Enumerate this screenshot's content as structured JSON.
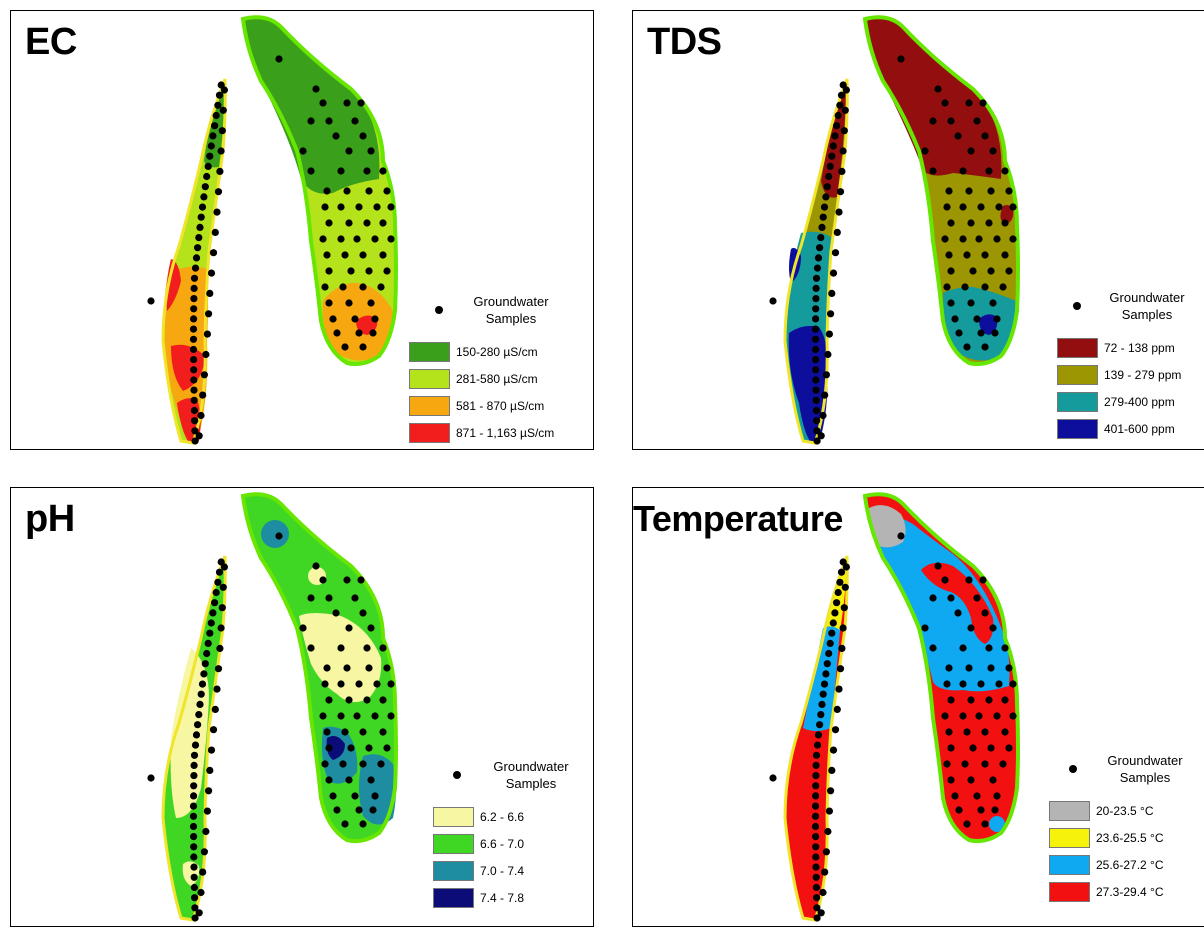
{
  "panels": [
    {
      "id": "ec",
      "title": "EC",
      "legend_title_line1": "Groundwater",
      "legend_title_line2": "Samples",
      "classes": [
        {
          "label": "150-280 µS/cm",
          "color": "#3a9f1a"
        },
        {
          "label": "281-580 µS/cm",
          "color": "#b4e31c"
        },
        {
          "label": "581 - 870 µS/cm",
          "color": "#f7a70f"
        },
        {
          "label": "871 - 1,163 µS/cm",
          "color": "#f21e1e"
        }
      ]
    },
    {
      "id": "tds",
      "title": "TDS",
      "legend_title_line1": "Groundwater",
      "legend_title_line2": "Samples",
      "classes": [
        {
          "label": "72 - 138 ppm",
          "color": "#930f0f"
        },
        {
          "label": "139 - 279 ppm",
          "color": "#9c9602"
        },
        {
          "label": "279-400 ppm",
          "color": "#159b9b"
        },
        {
          "label": "401-600 ppm",
          "color": "#0e0e9c"
        }
      ]
    },
    {
      "id": "ph",
      "title": "pH",
      "legend_title_line1": "Groundwater",
      "legend_title_line2": "Samples",
      "classes": [
        {
          "label": "6.2 - 6.6",
          "color": "#f7f6a2"
        },
        {
          "label": "6.6 - 7.0",
          "color": "#40d624"
        },
        {
          "label": "7.0 - 7.4",
          "color": "#1e8ca1"
        },
        {
          "label": "7.4 - 7.8",
          "color": "#0c0c78"
        }
      ]
    },
    {
      "id": "temperature",
      "title": "Temperature",
      "legend_title_line1": "Groundwater",
      "legend_title_line2": "Samples",
      "classes": [
        {
          "label": "20-23.5 °C",
          "color": "#b4b4b4"
        },
        {
          "label": "23.6-25.5 °C",
          "color": "#f7f20c"
        },
        {
          "label": "25.6-27.2 °C",
          "color": "#0fa9f2"
        },
        {
          "label": "27.3-29.4 °C",
          "color": "#f21010"
        }
      ]
    }
  ],
  "colors": {
    "outline": "#66e600",
    "sample_point": "#000000"
  }
}
